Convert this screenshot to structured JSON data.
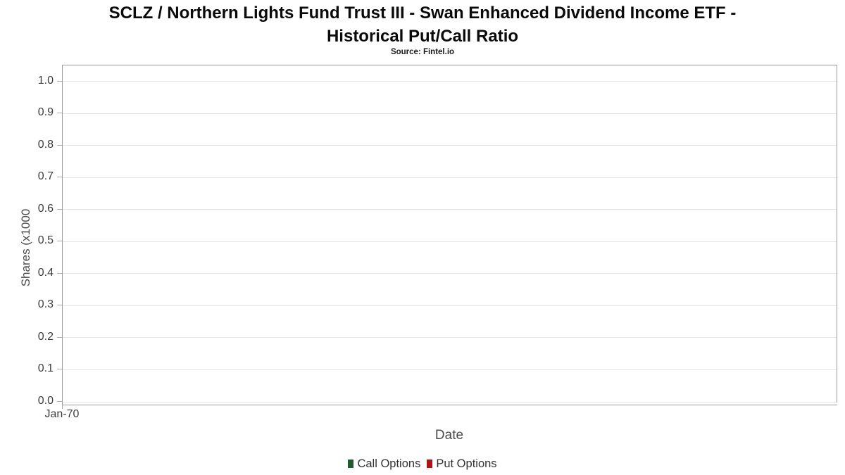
{
  "chart_data": {
    "type": "line",
    "title": "SCLZ / Northern Lights Fund Trust III - Swan Enhanced Dividend Income ETF - Historical Put/Call Ratio",
    "title_lines": [
      "SCLZ / Northern Lights Fund Trust III - Swan Enhanced Dividend Income ETF -",
      "Historical Put/Call Ratio"
    ],
    "subtitle": "Source: Fintel.io",
    "xlabel": "Date",
    "ylabel": "Shares (x1000",
    "x_ticks": [
      "Jan-70"
    ],
    "y_ticks": [
      "0.0",
      "0.1",
      "0.2",
      "0.3",
      "0.4",
      "0.5",
      "0.6",
      "0.7",
      "0.8",
      "0.9",
      "1.0"
    ],
    "ylim": [
      0,
      1.05
    ],
    "grid": true,
    "legend_position": "bottom",
    "series": [
      {
        "name": "Call Options",
        "color": "#1e5b31",
        "values": []
      },
      {
        "name": "Put Options",
        "color": "#ae1414",
        "values": []
      }
    ]
  }
}
